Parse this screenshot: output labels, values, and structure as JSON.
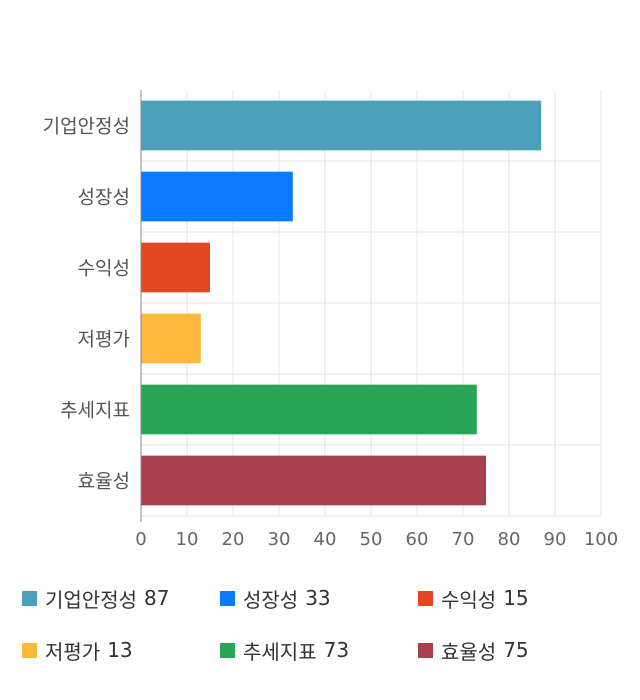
{
  "chart_data": {
    "type": "bar",
    "orientation": "horizontal",
    "categories": [
      "기업안정성",
      "성장성",
      "수익성",
      "저평가",
      "추세지표",
      "효율성"
    ],
    "values": [
      87,
      33,
      15,
      13,
      73,
      75
    ],
    "colors": [
      "#4aa1b9",
      "#0a7bff",
      "#e34724",
      "#fdb93b",
      "#29a655",
      "#a7414d"
    ],
    "xlim": [
      0,
      100
    ],
    "xticks": [
      0,
      10,
      20,
      30,
      40,
      50,
      60,
      70,
      80,
      90,
      100
    ],
    "grid": true,
    "legend_position": "bottom",
    "title": "",
    "xlabel": "",
    "ylabel": ""
  },
  "legend": [
    {
      "label": "기업안정성",
      "value": "87",
      "color": "#4aa1b9"
    },
    {
      "label": "성장성",
      "value": "33",
      "color": "#0a7bff"
    },
    {
      "label": "수익성",
      "value": "15",
      "color": "#e34724"
    },
    {
      "label": "저평가",
      "value": "13",
      "color": "#fdb93b"
    },
    {
      "label": "추세지표",
      "value": "73",
      "color": "#29a655"
    },
    {
      "label": "효율성",
      "value": "75",
      "color": "#a7414d"
    }
  ]
}
